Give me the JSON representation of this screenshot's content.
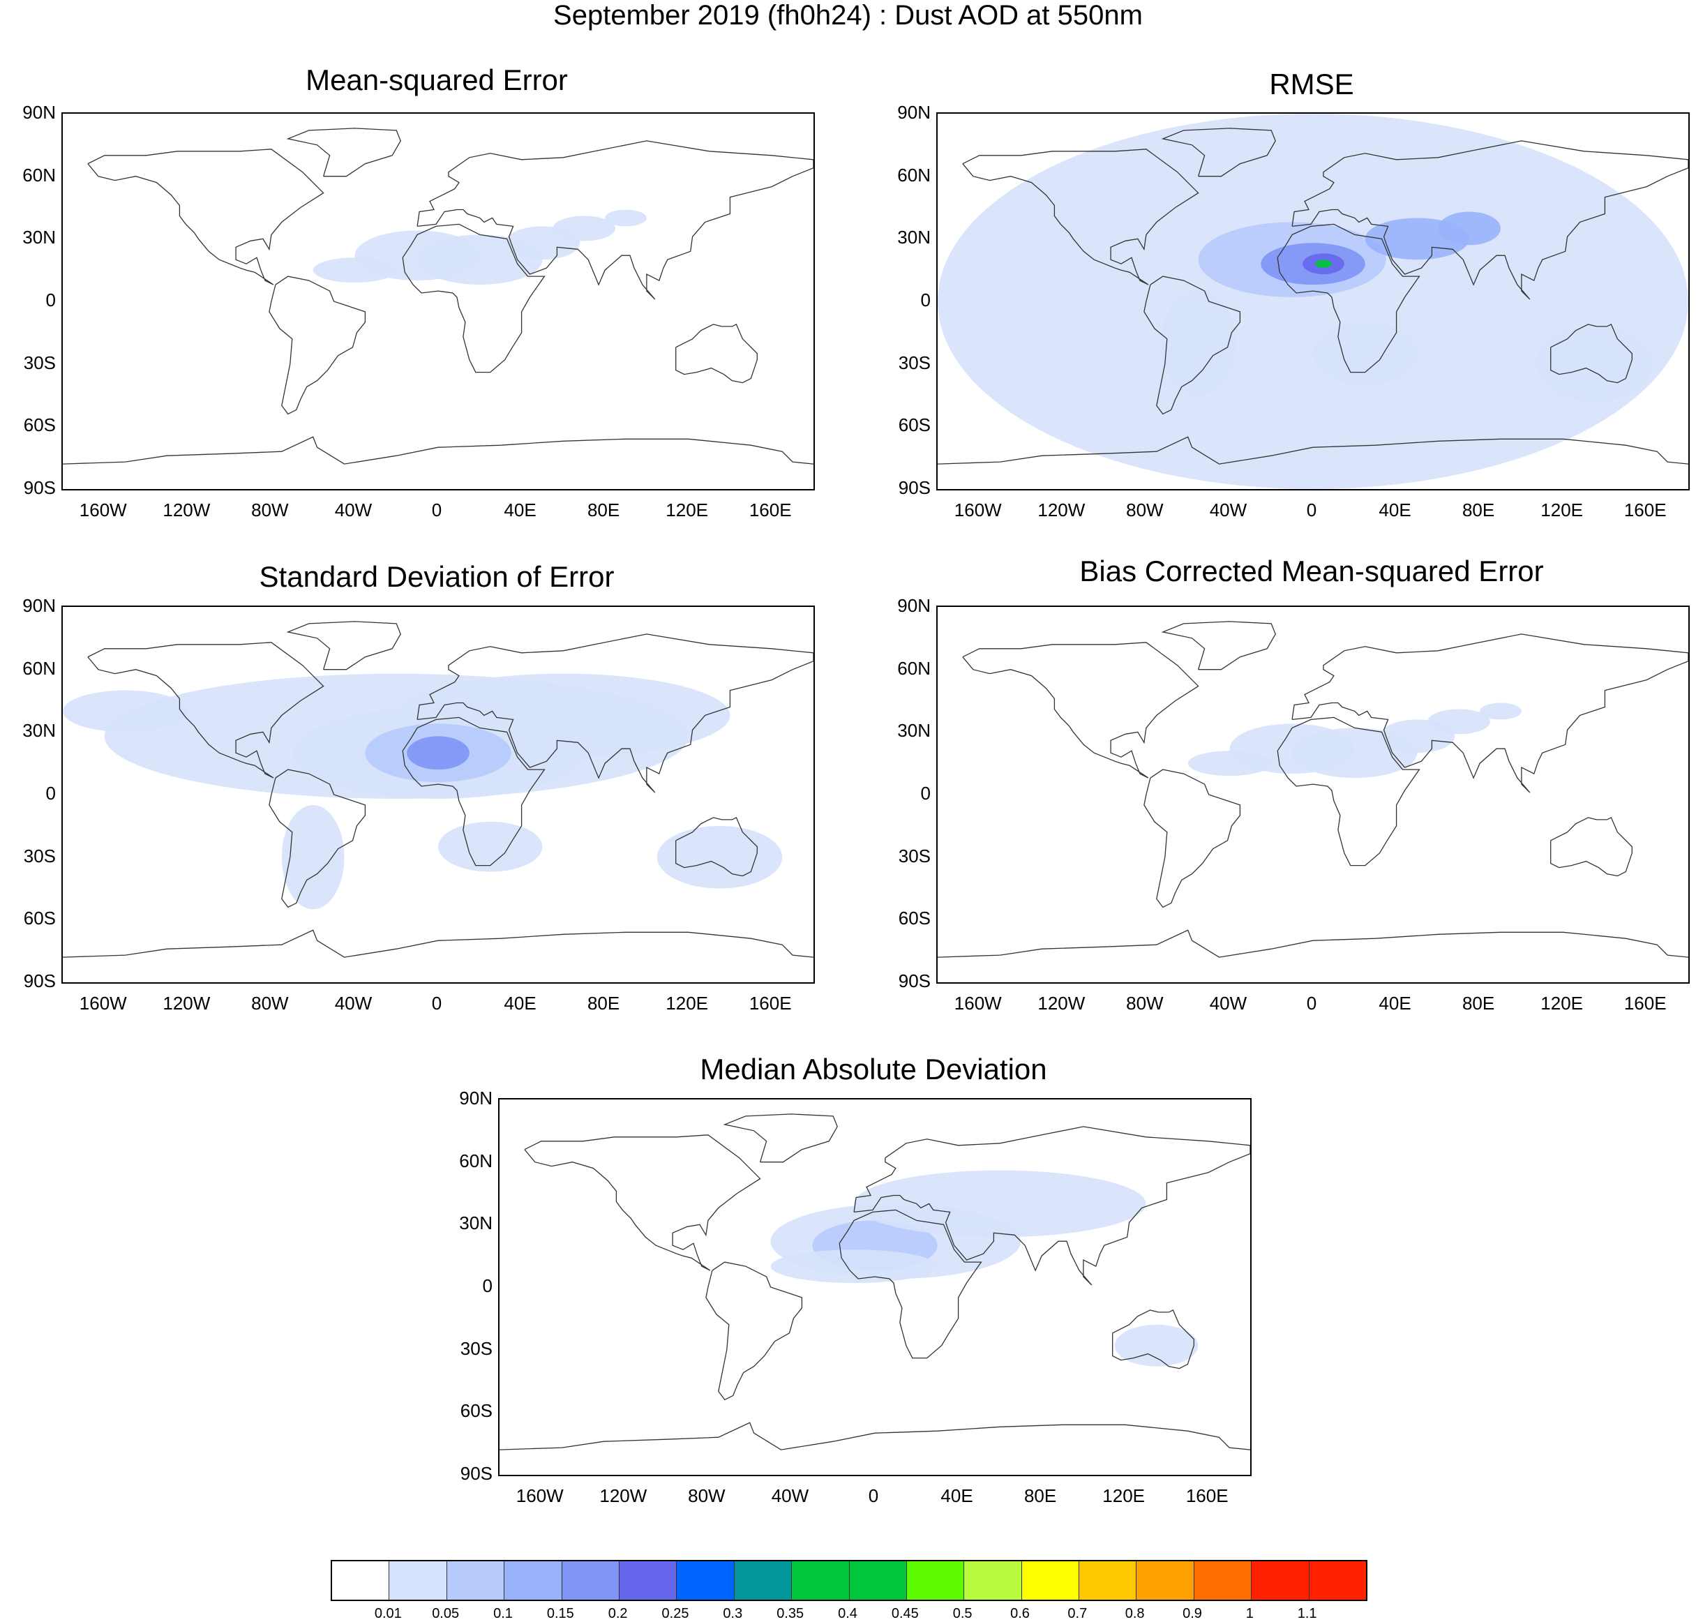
{
  "title": "September 2019 (fh0h24) : Dust AOD at 550nm",
  "lat_labels": [
    "90N",
    "60N",
    "30N",
    "0",
    "30S",
    "60S",
    "90S"
  ],
  "lon_labels": [
    "160W",
    "120W",
    "80W",
    "40W",
    "0",
    "40E",
    "80E",
    "120E",
    "160E"
  ],
  "panels": [
    {
      "title": "Mean-squared Error",
      "intensity": "low"
    },
    {
      "title": "RMSE",
      "intensity": "high"
    },
    {
      "title": "Standard Deviation of Error",
      "intensity": "medium"
    },
    {
      "title": "Bias Corrected Mean-squared Error",
      "intensity": "low"
    },
    {
      "title": "Median Absolute Deviation",
      "intensity": "medium-low"
    }
  ],
  "colorbar": {
    "labels": [
      "0.01",
      "0.05",
      "0.1",
      "0.15",
      "0.2",
      "0.25",
      "0.3",
      "0.35",
      "0.4",
      "0.45",
      "0.5",
      "0.6",
      "0.7",
      "0.8",
      "0.9",
      "1",
      "1.1"
    ],
    "colors": [
      "#ffffff",
      "#d6e2fb",
      "#b6cafc",
      "#98b2fc",
      "#7f95f5",
      "#6767ee",
      "#0064ff",
      "#00969b",
      "#00c639",
      "#00c639",
      "#5dfb00",
      "#b8fb3c",
      "#fefe00",
      "#fec800",
      "#fea100",
      "#fe6e00",
      "#ff2100"
    ]
  }
}
